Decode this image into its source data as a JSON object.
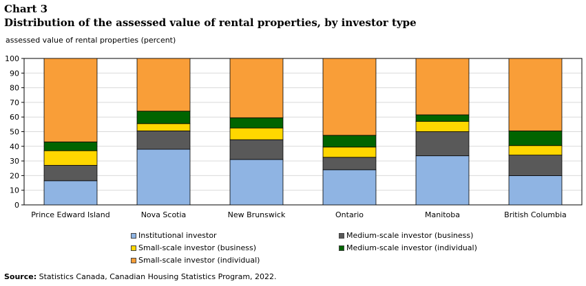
{
  "header": {
    "chart_number": "Chart 3",
    "title": "Distribution  of the assessed value of rental properties, by investor type"
  },
  "footer": {
    "source_label": "Source:",
    "source_text": "Statistics Canada, Canadian Housing Statistics Program, 2022."
  },
  "colors": {
    "institutional": "#8fb4e3",
    "medium_business": "#595959",
    "small_business": "#ffd700",
    "medium_individual": "#006400",
    "small_individual": "#f99e38",
    "grid": "#d9d9d9"
  },
  "chart_data": {
    "type": "bar",
    "stacked": true,
    "title": "Distribution  of the assessed value of rental properties, by investor type",
    "ylabel": "assessed value of rental properties (percent)",
    "xlabel": "",
    "ylim": [
      0,
      100
    ],
    "yticks": [
      0,
      10,
      20,
      30,
      40,
      50,
      60,
      70,
      80,
      90,
      100
    ],
    "grid": true,
    "legend_position": "bottom",
    "categories": [
      "Prince Edward Island",
      "Nova Scotia",
      "New Brunswick",
      "Ontario",
      "Manitoba",
      "British Columbia"
    ],
    "series": [
      {
        "name": "Institutional investor",
        "color": "#8fb4e3",
        "values": [
          16.5,
          38,
          31,
          24,
          33.5,
          20
        ]
      },
      {
        "name": "Medium-scale investor (business)",
        "color": "#595959",
        "values": [
          10.5,
          12.5,
          13.5,
          8.5,
          16.5,
          14
        ]
      },
      {
        "name": "Small-scale investor (business)",
        "color": "#ffd700",
        "values": [
          10,
          5,
          8,
          7,
          7,
          6.5
        ]
      },
      {
        "name": "Medium-scale investor (individual)",
        "color": "#006400",
        "values": [
          6,
          8.5,
          7,
          8,
          4.5,
          10
        ]
      },
      {
        "name": "Small-scale investor (individual)",
        "color": "#f99e38",
        "values": [
          57,
          36,
          40.5,
          52.5,
          38.5,
          49.5
        ]
      }
    ]
  }
}
